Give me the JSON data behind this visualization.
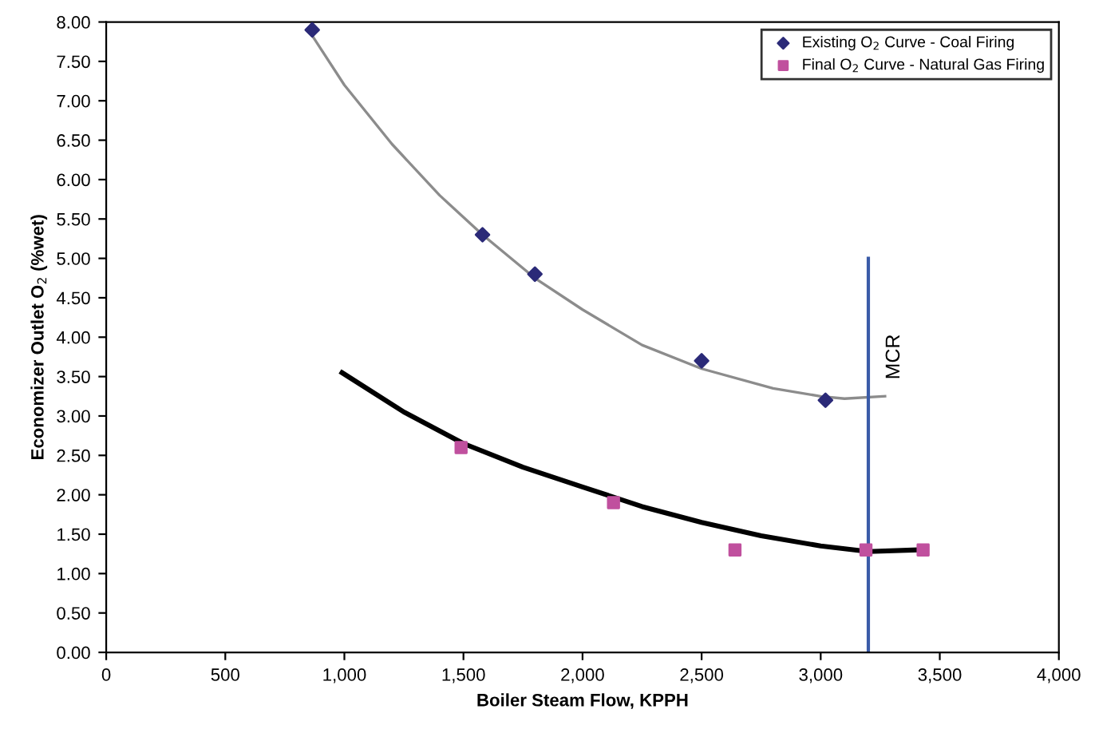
{
  "chart_data": {
    "type": "scatter",
    "xlabel": "Boiler Steam Flow, KPPH",
    "ylabel": "Economizer Outlet O$_{2}$ (%wet)",
    "xlim": [
      0,
      4000
    ],
    "ylim": [
      0,
      8
    ],
    "xticks": [
      0,
      500,
      {
        "value": 1000,
        "label": "1,000"
      },
      {
        "value": 1500,
        "label": "1,500"
      },
      {
        "value": 2000,
        "label": "2,000"
      },
      {
        "value": 2500,
        "label": "2,500"
      },
      {
        "value": 3000,
        "label": "3,000"
      },
      {
        "value": 3500,
        "label": "3,500"
      },
      {
        "value": 4000,
        "label": "4,000"
      }
    ],
    "yticks": [
      {
        "value": 0,
        "label": "0.00"
      },
      {
        "value": 0.5,
        "label": "0.50"
      },
      {
        "value": 1,
        "label": "1.00"
      },
      {
        "value": 1.5,
        "label": "1.50"
      },
      {
        "value": 2,
        "label": "2.00"
      },
      {
        "value": 2.5,
        "label": "2.50"
      },
      {
        "value": 3,
        "label": "3.00"
      },
      {
        "value": 3.5,
        "label": "3.50"
      },
      {
        "value": 4,
        "label": "4.00"
      },
      {
        "value": 4.5,
        "label": "4.50"
      },
      {
        "value": 5,
        "label": "5.00"
      },
      {
        "value": 5.5,
        "label": "5.50"
      },
      {
        "value": 6,
        "label": "6.00"
      },
      {
        "value": 6.5,
        "label": "6.50"
      },
      {
        "value": 7,
        "label": "7.00"
      },
      {
        "value": 7.5,
        "label": "7.50"
      },
      {
        "value": 8,
        "label": "8.00"
      }
    ],
    "grid": false,
    "legend": "top right",
    "series": [
      {
        "type": "line",
        "color": "#8c8c8c",
        "line_style": "solid",
        "marker": "none",
        "x": [
          860,
          1000,
          1200,
          1400,
          1580,
          1800,
          2000,
          2250,
          2500,
          2800,
          3000,
          3100,
          3270
        ],
        "values": [
          7.85,
          7.2,
          6.45,
          5.8,
          5.3,
          4.75,
          4.35,
          3.9,
          3.6,
          3.35,
          3.25,
          3.22,
          3.25
        ]
      },
      {
        "type": "line",
        "color": "#000000",
        "line_style": "solid",
        "marker": "none",
        "x": [
          990,
          1250,
          1500,
          1750,
          2000,
          2250,
          2500,
          2750,
          3000,
          3200,
          3400
        ],
        "values": [
          3.55,
          3.05,
          2.65,
          2.35,
          2.1,
          1.85,
          1.65,
          1.48,
          1.35,
          1.28,
          1.3
        ]
      },
      {
        "name": "Existing O$_{2}$ Curve - Coal Firing",
        "color": "#2b2a78",
        "marker": "diamond",
        "x": [
          865,
          1580,
          1800,
          2500,
          3020
        ],
        "values": [
          7.9,
          5.3,
          4.8,
          3.7,
          3.2
        ]
      },
      {
        "name": "Final O$_{2}$ Curve - Natural Gas Firing",
        "color": "#c0509e",
        "marker": "square",
        "x": [
          1490,
          2130,
          2640,
          3190,
          3430
        ],
        "values": [
          2.6,
          1.9,
          1.3,
          1.3,
          1.3
        ]
      },
      {
        "type": "line",
        "name": "MCR",
        "color": "#3a5ba8",
        "x": [
          3200,
          3200
        ],
        "values": [
          0,
          5
        ]
      }
    ]
  }
}
